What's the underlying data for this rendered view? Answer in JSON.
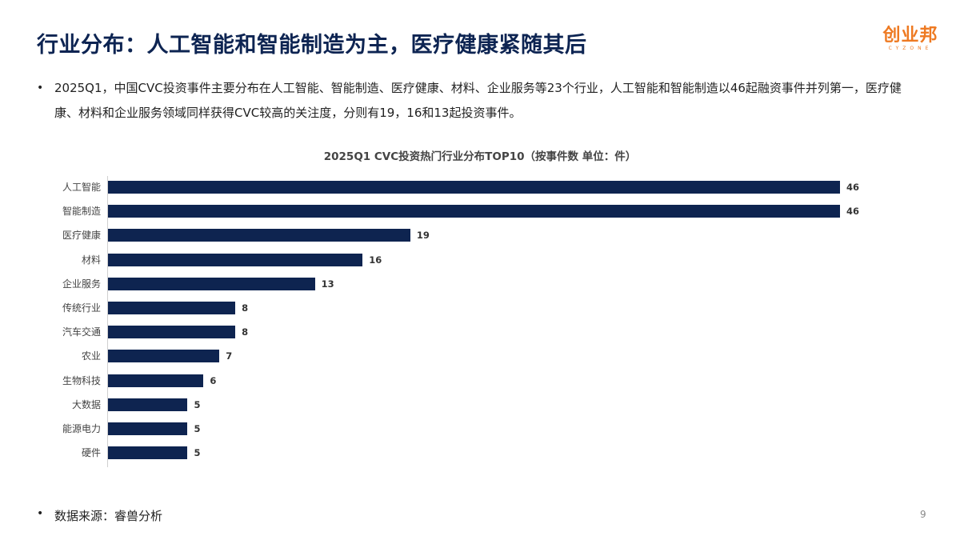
{
  "header": {
    "title": "行业分布：人工智能和智能制造为主，医疗健康紧随其后",
    "logo_text": "创业邦",
    "logo_subtext": "CYZONE"
  },
  "summary": {
    "bullet": "•",
    "text": "2025Q1，中国CVC投资事件主要分布在人工智能、智能制造、医疗健康、材料、企业服务等23个行业，人工智能和智能制造以46起融资事件并列第一，医疗健康、材料和企业服务领域同样获得CVC较高的关注度，分则有19，16和13起投资事件。"
  },
  "chart_data": {
    "type": "bar",
    "orientation": "horizontal",
    "title": "2025Q1 CVC投资热门行业分布TOP10（按事件数 单位：件）",
    "xlabel": "",
    "ylabel": "",
    "categories": [
      "人工智能",
      "智能制造",
      "医疗健康",
      "材料",
      "企业服务",
      "传统行业",
      "汽车交通",
      "农业",
      "生物科技",
      "大数据",
      "能源电力",
      "硬件"
    ],
    "values": [
      46,
      46,
      19,
      16,
      13,
      8,
      8,
      7,
      6,
      5,
      5,
      5
    ],
    "bar_color": "#0e2450",
    "grid": false,
    "legend": "none",
    "data_labels": true,
    "xlim": [
      0,
      46
    ]
  },
  "footer": {
    "bullet": "•",
    "source": "数据来源：睿兽分析",
    "page_number": "9"
  }
}
